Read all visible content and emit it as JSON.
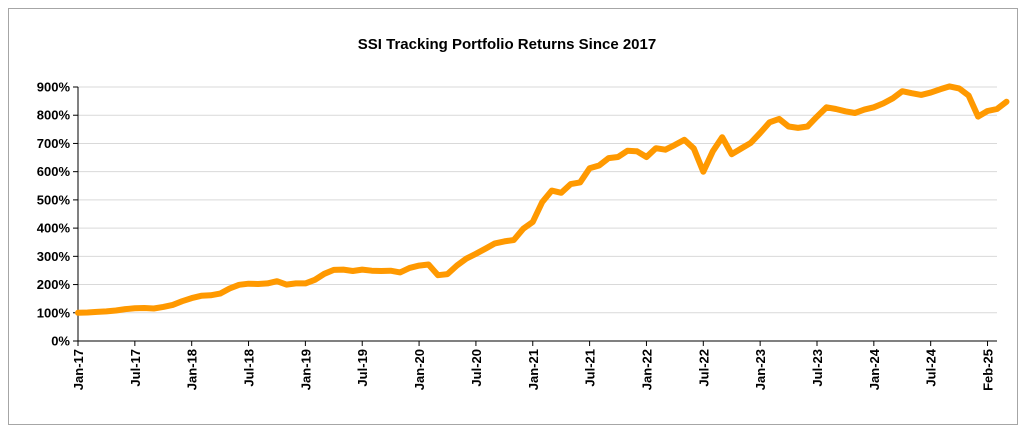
{
  "chart_data": {
    "type": "line",
    "title": "SSI Tracking Portfolio Returns Since 2017",
    "xlabel": "",
    "ylabel": "",
    "ylim": [
      0,
      900
    ],
    "y_ticks": [
      0,
      100,
      200,
      300,
      400,
      500,
      600,
      700,
      800,
      900
    ],
    "y_tick_labels": [
      "0%",
      "100%",
      "200%",
      "300%",
      "400%",
      "500%",
      "600%",
      "700%",
      "800%",
      "900%"
    ],
    "x_ticks": [
      0,
      6,
      12,
      18,
      24,
      30,
      36,
      42,
      48,
      54,
      60,
      66,
      72,
      78,
      84,
      90,
      96
    ],
    "x_tick_labels": [
      "Jan-17",
      "Jul-17",
      "Jan-18",
      "Jul-18",
      "Jan-19",
      "Jul-19",
      "Jan-20",
      "Jul-20",
      "Jan-21",
      "Jul-21",
      "Jan-22",
      "Jul-22",
      "Jan-23",
      "Jul-23",
      "Jan-24",
      "Jul-24",
      "Feb-25"
    ],
    "x_max": 97,
    "grid": true,
    "line_color": "#FF9900",
    "series": [
      {
        "name": "SSI Tracking Portfolio",
        "values": [
          100,
          101,
          103,
          105,
          108,
          113,
          116,
          117,
          115,
          121,
          128,
          141,
          152,
          160,
          162,
          168,
          186,
          199,
          203,
          202,
          204,
          212,
          200,
          204,
          204,
          217,
          238,
          252,
          253,
          248,
          253,
          249,
          248,
          249,
          243,
          259,
          267,
          271,
          233,
          237,
          268,
          292,
          309,
          327,
          346,
          353,
          358,
          398,
          422,
          492,
          533,
          525,
          556,
          562,
          612,
          622,
          648,
          652,
          674,
          672,
          652,
          683,
          678,
          695,
          713,
          682,
          600,
          672,
          722,
          662,
          682,
          702,
          737,
          775,
          787,
          760,
          755,
          760,
          795,
          828,
          822,
          814,
          808,
          820,
          828,
          842,
          860,
          885,
          878,
          872,
          880,
          892,
          902,
          895,
          870,
          795,
          815,
          822,
          848
        ]
      }
    ]
  }
}
